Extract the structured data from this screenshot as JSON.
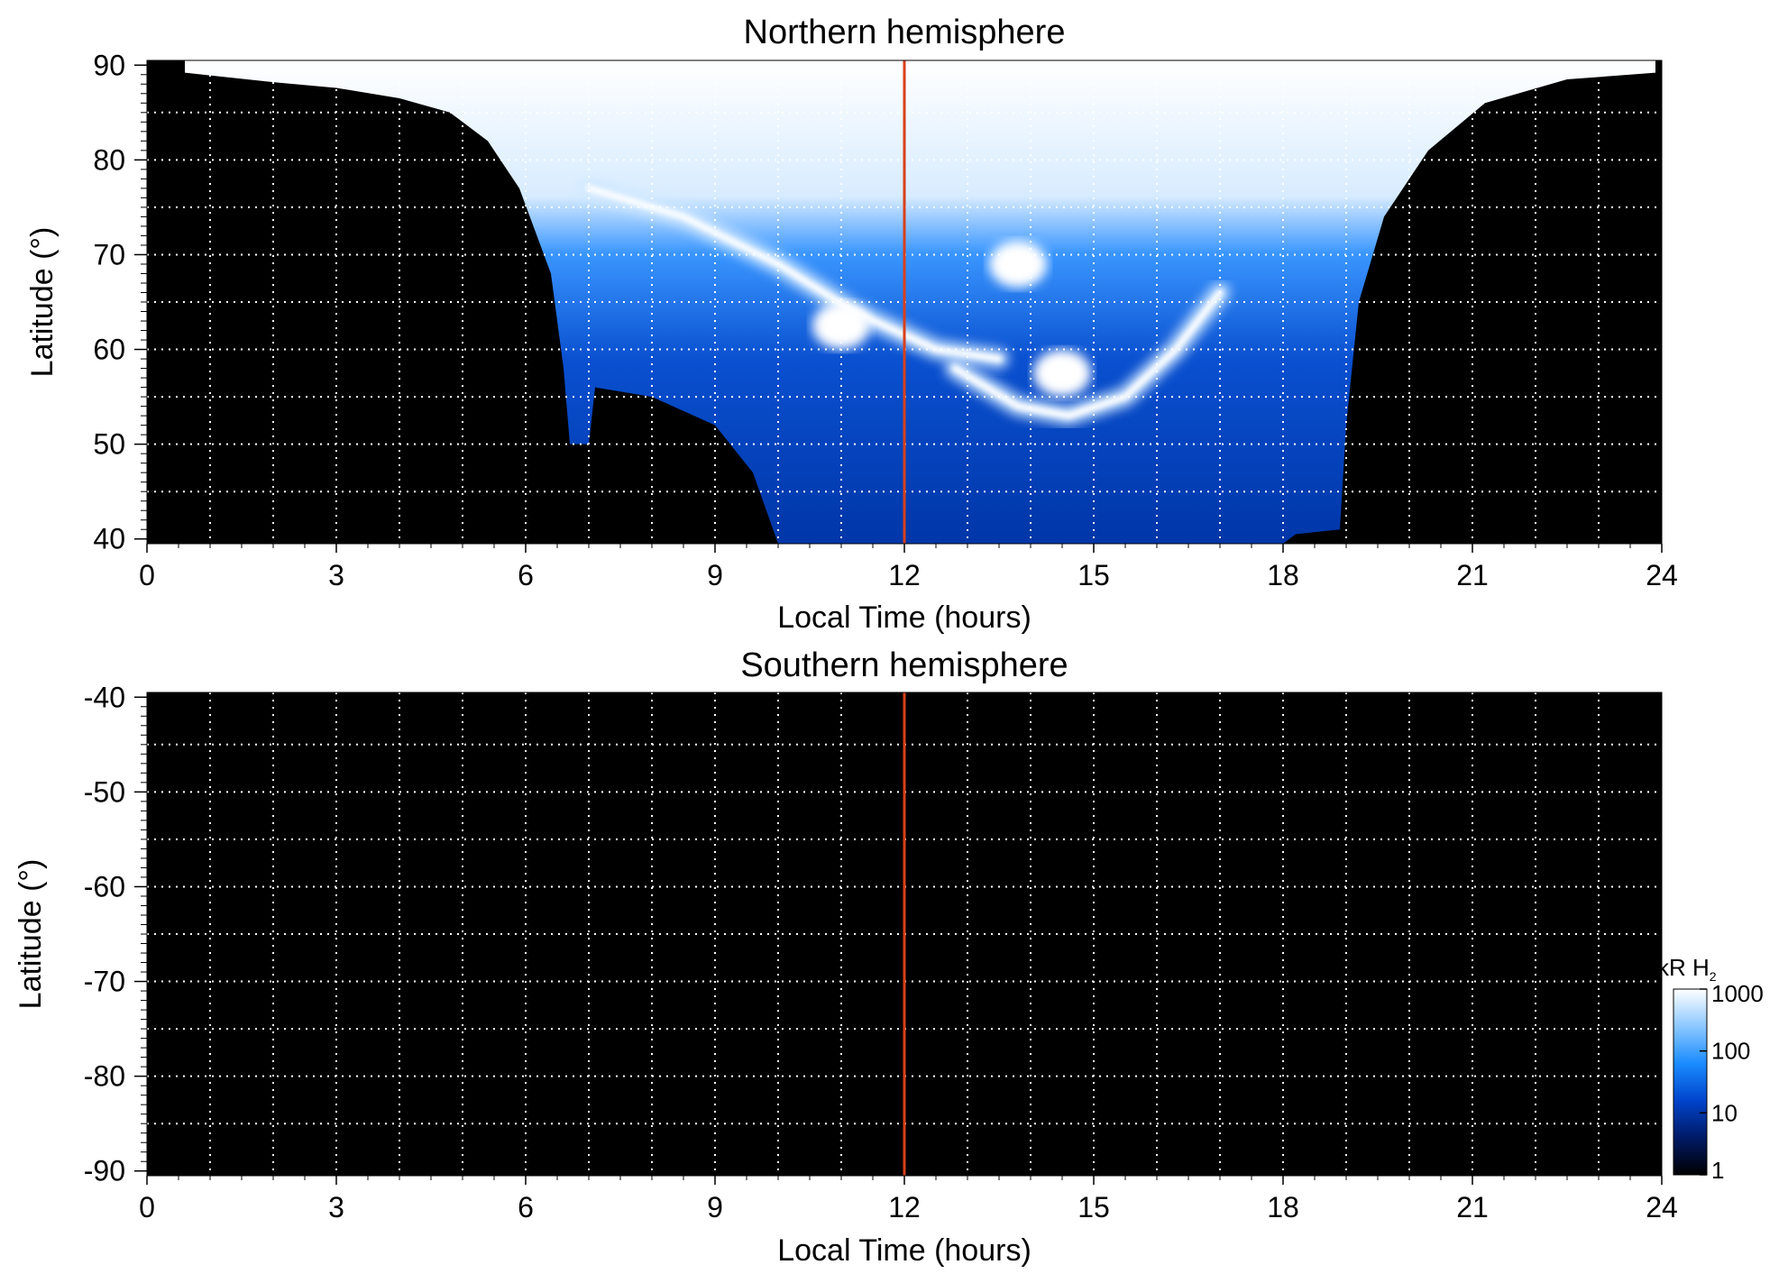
{
  "chart_data": [
    {
      "type": "heatmap",
      "title": "Northern hemisphere",
      "xlabel": "Local Time (hours)",
      "ylabel": "Latitude (°)",
      "xlim": [
        0,
        24
      ],
      "ylim": [
        39.5,
        90.5
      ],
      "xticks": [
        "0",
        "3",
        "6",
        "9",
        "12",
        "15",
        "18",
        "21",
        "24"
      ],
      "xtick_values": [
        0,
        3,
        6,
        9,
        12,
        15,
        18,
        21,
        24
      ],
      "yticks": [
        "40",
        "50",
        "60",
        "70",
        "80",
        "90"
      ],
      "ytick_values": [
        40,
        50,
        60,
        70,
        80,
        90
      ],
      "grid": true,
      "grid_x": [
        1,
        2,
        3,
        4,
        5,
        6,
        7,
        8,
        9,
        10,
        11,
        12,
        13,
        14,
        15,
        16,
        17,
        18,
        19,
        20,
        21,
        22,
        23
      ],
      "grid_y": [
        45,
        50,
        55,
        60,
        65,
        70,
        75,
        80,
        85
      ],
      "noon_line_x": 12,
      "noon_line_color": "#d9401a",
      "background_color": "#000000",
      "emission_envelope": {
        "lower_latitude_by_local_time": [
          {
            "x": 0.6,
            "y": 89.2
          },
          {
            "x": 2.0,
            "y": 88.2
          },
          {
            "x": 3.0,
            "y": 87.6
          },
          {
            "x": 4.0,
            "y": 86.5
          },
          {
            "x": 4.8,
            "y": 85.0
          },
          {
            "x": 5.4,
            "y": 82.0
          },
          {
            "x": 5.9,
            "y": 77.0
          },
          {
            "x": 6.4,
            "y": 68.0
          },
          {
            "x": 6.6,
            "y": 58.0
          },
          {
            "x": 6.7,
            "y": 50.0
          },
          {
            "x": 7.0,
            "y": 50.0
          },
          {
            "x": 7.1,
            "y": 56.0
          },
          {
            "x": 8.0,
            "y": 55.0
          },
          {
            "x": 9.0,
            "y": 52.0
          },
          {
            "x": 9.6,
            "y": 47.0
          },
          {
            "x": 10.0,
            "y": 39.5
          },
          {
            "x": 18.0,
            "y": 39.5
          },
          {
            "x": 18.2,
            "y": 40.5
          },
          {
            "x": 18.9,
            "y": 41.0
          },
          {
            "x": 19.0,
            "y": 52.0
          },
          {
            "x": 19.2,
            "y": 65.0
          },
          {
            "x": 19.6,
            "y": 74.0
          },
          {
            "x": 20.3,
            "y": 81.0
          },
          {
            "x": 21.2,
            "y": 86.0
          },
          {
            "x": 22.5,
            "y": 88.5
          },
          {
            "x": 23.9,
            "y": 89.2
          }
        ]
      },
      "bright_features": [
        {
          "kind": "arc",
          "points": [
            [
              7.0,
              77.0
            ],
            [
              8.5,
              74.0
            ],
            [
              10.0,
              69.0
            ],
            [
              11.2,
              64.0
            ],
            [
              12.5,
              60.0
            ],
            [
              13.5,
              59.0
            ]
          ]
        },
        {
          "kind": "arc",
          "points": [
            [
              12.8,
              58.0
            ],
            [
              13.8,
              54.0
            ],
            [
              14.6,
              53.0
            ],
            [
              15.5,
              55.0
            ],
            [
              16.3,
              60.0
            ],
            [
              17.0,
              66.0
            ]
          ]
        },
        {
          "kind": "spot",
          "x": 13.8,
          "y": 69.0
        },
        {
          "kind": "spot",
          "x": 14.5,
          "y": 57.5
        },
        {
          "kind": "spot",
          "x": 11.0,
          "y": 62.5
        }
      ]
    },
    {
      "type": "heatmap",
      "title": "Southern hemisphere",
      "xlabel": "Local Time (hours)",
      "ylabel": "Latitude (°)",
      "xlim": [
        0,
        24
      ],
      "ylim": [
        -90.5,
        -39.5
      ],
      "xticks": [
        "0",
        "3",
        "6",
        "9",
        "12",
        "15",
        "18",
        "21",
        "24"
      ],
      "xtick_values": [
        0,
        3,
        6,
        9,
        12,
        15,
        18,
        21,
        24
      ],
      "yticks": [
        "-40",
        "-50",
        "-60",
        "-70",
        "-80",
        "-90"
      ],
      "ytick_values": [
        -40,
        -50,
        -60,
        -70,
        -80,
        -90
      ],
      "grid": true,
      "grid_x": [
        1,
        2,
        3,
        4,
        5,
        6,
        7,
        8,
        9,
        10,
        11,
        12,
        13,
        14,
        15,
        16,
        17,
        18,
        19,
        20,
        21,
        22,
        23
      ],
      "grid_y": [
        -45,
        -50,
        -55,
        -60,
        -65,
        -70,
        -75,
        -80,
        -85
      ],
      "noon_line_x": 12,
      "noon_line_color": "#d9401a",
      "background_color": "#000000"
    }
  ],
  "colorbar": {
    "label_main": "kR H",
    "label_sub": "2",
    "scale": "log",
    "range": [
      1,
      1000
    ],
    "ticks": [
      "1000",
      "100",
      "10",
      "1"
    ],
    "tick_values": [
      1000,
      100,
      10,
      1
    ],
    "colors": [
      "#000000",
      "#001a66",
      "#0044cc",
      "#1a8cff",
      "#8cc8ff",
      "#ffffff"
    ]
  }
}
